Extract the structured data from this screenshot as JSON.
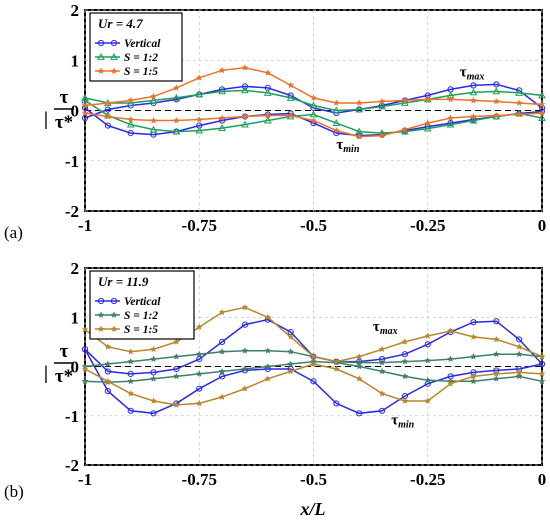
{
  "figure": {
    "xlabel": "x/L",
    "ylabel": {
      "numerator": "τ",
      "bar": "|",
      "denominator": "τ*"
    },
    "panel_labels": [
      "(a)",
      "(b)"
    ]
  },
  "colors": {
    "Vertical": "#2a2ae6",
    "S = 1:2": "#1f9e5a",
    "S = 1:5": "#e8732a",
    "S = 1:2 (b)": "#3f7f6a",
    "S = 1:5 (b)": "#b8862b"
  },
  "chart_data": [
    {
      "type": "line",
      "title": "Ur = 4.7",
      "xlabel": "",
      "ylabel": "τ / |τ*|",
      "xlim": [
        -1,
        0
      ],
      "ylim": [
        -2,
        2
      ],
      "xticks": [
        "-1",
        "-0.75",
        "-0.5",
        "-0.25",
        "0"
      ],
      "yticks": [
        "-2",
        "-1",
        "0",
        "1",
        "2"
      ],
      "grid": true,
      "legend_position": "top-left",
      "legend": [
        "Vertical",
        "S = 1:2",
        "S = 1:5"
      ],
      "annotations": [
        {
          "text": "τ",
          "sub": "max",
          "x": -0.18,
          "y": 0.68
        },
        {
          "text": "τ",
          "sub": "min",
          "x": -0.45,
          "y": -0.77
        }
      ],
      "series": [
        {
          "name": "Vertical",
          "kind": "max",
          "marker": "circle",
          "x": [
            -1,
            -0.95,
            -0.9,
            -0.85,
            -0.8,
            -0.75,
            -0.7,
            -0.65,
            -0.6,
            -0.55,
            -0.5,
            -0.45,
            -0.4,
            -0.35,
            -0.3,
            -0.25,
            -0.2,
            -0.15,
            -0.1,
            -0.05,
            0
          ],
          "y": [
            -0.15,
            0.02,
            0.1,
            0.15,
            0.22,
            0.32,
            0.42,
            0.48,
            0.45,
            0.3,
            0.05,
            -0.05,
            0.02,
            0.1,
            0.2,
            0.3,
            0.42,
            0.5,
            0.52,
            0.4,
            0.05
          ]
        },
        {
          "name": "Vertical",
          "kind": "min",
          "marker": "circle",
          "x": [
            -1,
            -0.95,
            -0.9,
            -0.85,
            -0.8,
            -0.75,
            -0.7,
            -0.65,
            -0.6,
            -0.55,
            -0.5,
            -0.45,
            -0.4,
            -0.35,
            -0.3,
            -0.25,
            -0.2,
            -0.15,
            -0.1,
            -0.05,
            0
          ],
          "y": [
            0.05,
            -0.3,
            -0.45,
            -0.48,
            -0.42,
            -0.3,
            -0.2,
            -0.12,
            -0.08,
            -0.06,
            -0.25,
            -0.45,
            -0.5,
            -0.48,
            -0.4,
            -0.32,
            -0.25,
            -0.18,
            -0.12,
            -0.06,
            -0.02
          ]
        },
        {
          "name": "S = 1:2",
          "kind": "max",
          "marker": "triangle",
          "x": [
            -1,
            -0.95,
            -0.9,
            -0.85,
            -0.8,
            -0.75,
            -0.7,
            -0.65,
            -0.6,
            -0.55,
            -0.5,
            -0.45,
            -0.4,
            -0.35,
            -0.3,
            -0.25,
            -0.2,
            -0.15,
            -0.1,
            -0.05,
            0
          ],
          "y": [
            0.25,
            0.15,
            0.15,
            0.2,
            0.25,
            0.32,
            0.38,
            0.4,
            0.35,
            0.25,
            0.1,
            0.0,
            0.02,
            0.08,
            0.15,
            0.22,
            0.3,
            0.36,
            0.38,
            0.35,
            0.3
          ]
        },
        {
          "name": "S = 1:2",
          "kind": "min",
          "marker": "triangle",
          "x": [
            -1,
            -0.95,
            -0.9,
            -0.85,
            -0.8,
            -0.75,
            -0.7,
            -0.65,
            -0.6,
            -0.55,
            -0.5,
            -0.45,
            -0.4,
            -0.35,
            -0.3,
            -0.25,
            -0.2,
            -0.15,
            -0.1,
            -0.05,
            0
          ],
          "y": [
            0.2,
            -0.1,
            -0.28,
            -0.38,
            -0.42,
            -0.4,
            -0.35,
            -0.28,
            -0.2,
            -0.12,
            -0.08,
            -0.25,
            -0.42,
            -0.45,
            -0.42,
            -0.36,
            -0.28,
            -0.2,
            -0.12,
            -0.06,
            -0.15
          ]
        },
        {
          "name": "S = 1:5",
          "kind": "max",
          "marker": "star",
          "x": [
            -1,
            -0.95,
            -0.9,
            -0.85,
            -0.8,
            -0.75,
            -0.7,
            -0.65,
            -0.6,
            -0.55,
            -0.5,
            -0.45,
            -0.4,
            -0.35,
            -0.3,
            -0.25,
            -0.2,
            -0.15,
            -0.1,
            -0.05,
            0
          ],
          "y": [
            0.1,
            0.15,
            0.2,
            0.28,
            0.45,
            0.65,
            0.8,
            0.85,
            0.75,
            0.5,
            0.25,
            0.15,
            0.15,
            0.18,
            0.2,
            0.22,
            0.22,
            0.2,
            0.18,
            0.15,
            0.12
          ]
        },
        {
          "name": "S = 1:5",
          "kind": "min",
          "marker": "star",
          "x": [
            -1,
            -0.95,
            -0.9,
            -0.85,
            -0.8,
            -0.75,
            -0.7,
            -0.65,
            -0.6,
            -0.55,
            -0.5,
            -0.45,
            -0.4,
            -0.35,
            -0.3,
            -0.25,
            -0.2,
            -0.15,
            -0.1,
            -0.05,
            0
          ],
          "y": [
            -0.05,
            -0.12,
            -0.18,
            -0.2,
            -0.2,
            -0.18,
            -0.15,
            -0.12,
            -0.1,
            -0.1,
            -0.2,
            -0.4,
            -0.52,
            -0.5,
            -0.38,
            -0.25,
            -0.15,
            -0.12,
            -0.1,
            -0.08,
            -0.05
          ]
        }
      ]
    },
    {
      "type": "line",
      "title": "Ur = 11.9",
      "xlabel": "x/L",
      "ylabel": "τ / |τ*|",
      "xlim": [
        -1,
        0
      ],
      "ylim": [
        -2,
        2
      ],
      "xticks": [
        "-1",
        "-0.75",
        "-0.5",
        "-0.25",
        "0"
      ],
      "yticks": [
        "-2",
        "-1",
        "0",
        "1",
        "2"
      ],
      "grid": true,
      "legend_position": "top-left",
      "legend": [
        "Vertical",
        "S = 1:2",
        "S = 1:5"
      ],
      "annotations": [
        {
          "text": "τ",
          "sub": "max",
          "x": -0.37,
          "y": 0.72
        },
        {
          "text": "τ",
          "sub": "min",
          "x": -0.33,
          "y": -1.18
        }
      ],
      "series": [
        {
          "name": "Vertical",
          "kind": "max",
          "marker": "circle",
          "x": [
            -1,
            -0.95,
            -0.9,
            -0.85,
            -0.8,
            -0.75,
            -0.7,
            -0.65,
            -0.6,
            -0.55,
            -0.5,
            -0.45,
            -0.4,
            -0.35,
            -0.3,
            -0.25,
            -0.2,
            -0.15,
            -0.1,
            -0.05,
            0
          ],
          "y": [
            0.35,
            -0.1,
            -0.15,
            -0.12,
            -0.05,
            0.15,
            0.5,
            0.85,
            0.95,
            0.7,
            0.2,
            0.1,
            0.1,
            0.15,
            0.25,
            0.45,
            0.7,
            0.9,
            0.92,
            0.55,
            0.05
          ]
        },
        {
          "name": "Vertical",
          "kind": "min",
          "marker": "circle",
          "x": [
            -1,
            -0.95,
            -0.9,
            -0.85,
            -0.8,
            -0.75,
            -0.7,
            -0.65,
            -0.6,
            -0.55,
            -0.5,
            -0.45,
            -0.4,
            -0.35,
            -0.3,
            -0.25,
            -0.2,
            -0.15,
            -0.1,
            -0.05,
            0
          ],
          "y": [
            0.35,
            -0.5,
            -0.9,
            -0.95,
            -0.75,
            -0.45,
            -0.2,
            -0.08,
            -0.05,
            -0.05,
            -0.3,
            -0.75,
            -0.95,
            -0.9,
            -0.6,
            -0.35,
            -0.2,
            -0.12,
            -0.08,
            -0.05,
            0.05
          ]
        },
        {
          "name": "S = 1:2",
          "kind": "max",
          "marker": "star",
          "x": [
            -1,
            -0.95,
            -0.9,
            -0.85,
            -0.8,
            -0.75,
            -0.7,
            -0.65,
            -0.6,
            -0.55,
            -0.5,
            -0.45,
            -0.4,
            -0.35,
            -0.3,
            -0.25,
            -0.2,
            -0.15,
            -0.1,
            -0.05,
            0
          ],
          "y": [
            0.0,
            0.05,
            0.1,
            0.15,
            0.2,
            0.25,
            0.3,
            0.32,
            0.32,
            0.3,
            0.2,
            0.1,
            0.08,
            0.08,
            0.1,
            0.12,
            0.15,
            0.2,
            0.25,
            0.25,
            0.2
          ]
        },
        {
          "name": "S = 1:2",
          "kind": "min",
          "marker": "star",
          "x": [
            -1,
            -0.95,
            -0.9,
            -0.85,
            -0.8,
            -0.75,
            -0.7,
            -0.65,
            -0.6,
            -0.55,
            -0.5,
            -0.45,
            -0.4,
            -0.35,
            -0.3,
            -0.25,
            -0.2,
            -0.15,
            -0.1,
            -0.05,
            0
          ],
          "y": [
            -0.3,
            -0.32,
            -0.3,
            -0.25,
            -0.2,
            -0.15,
            -0.1,
            -0.05,
            0.0,
            0.05,
            0.1,
            0.08,
            0.0,
            -0.1,
            -0.2,
            -0.28,
            -0.3,
            -0.3,
            -0.25,
            -0.2,
            -0.3
          ]
        },
        {
          "name": "S = 1:5",
          "kind": "max",
          "marker": "star",
          "x": [
            -1,
            -0.95,
            -0.9,
            -0.85,
            -0.8,
            -0.75,
            -0.7,
            -0.65,
            -0.6,
            -0.55,
            -0.5,
            -0.45,
            -0.4,
            -0.35,
            -0.3,
            -0.25,
            -0.2,
            -0.15,
            -0.1,
            -0.05,
            0
          ],
          "y": [
            0.75,
            0.4,
            0.3,
            0.35,
            0.5,
            0.8,
            1.1,
            1.2,
            1.0,
            0.6,
            0.2,
            0.1,
            0.2,
            0.35,
            0.5,
            0.62,
            0.72,
            0.6,
            0.55,
            0.4,
            0.2
          ]
        },
        {
          "name": "S = 1:5",
          "kind": "min",
          "marker": "star",
          "x": [
            -1,
            -0.95,
            -0.9,
            -0.85,
            -0.8,
            -0.75,
            -0.7,
            -0.65,
            -0.6,
            -0.55,
            -0.5,
            -0.45,
            -0.4,
            -0.35,
            -0.3,
            -0.25,
            -0.2,
            -0.15,
            -0.1,
            -0.05,
            0
          ],
          "y": [
            -0.05,
            -0.3,
            -0.55,
            -0.7,
            -0.78,
            -0.75,
            -0.62,
            -0.45,
            -0.25,
            -0.1,
            0.05,
            -0.05,
            -0.25,
            -0.55,
            -0.7,
            -0.7,
            -0.35,
            -0.2,
            -0.15,
            -0.12,
            -0.15
          ]
        }
      ]
    }
  ]
}
